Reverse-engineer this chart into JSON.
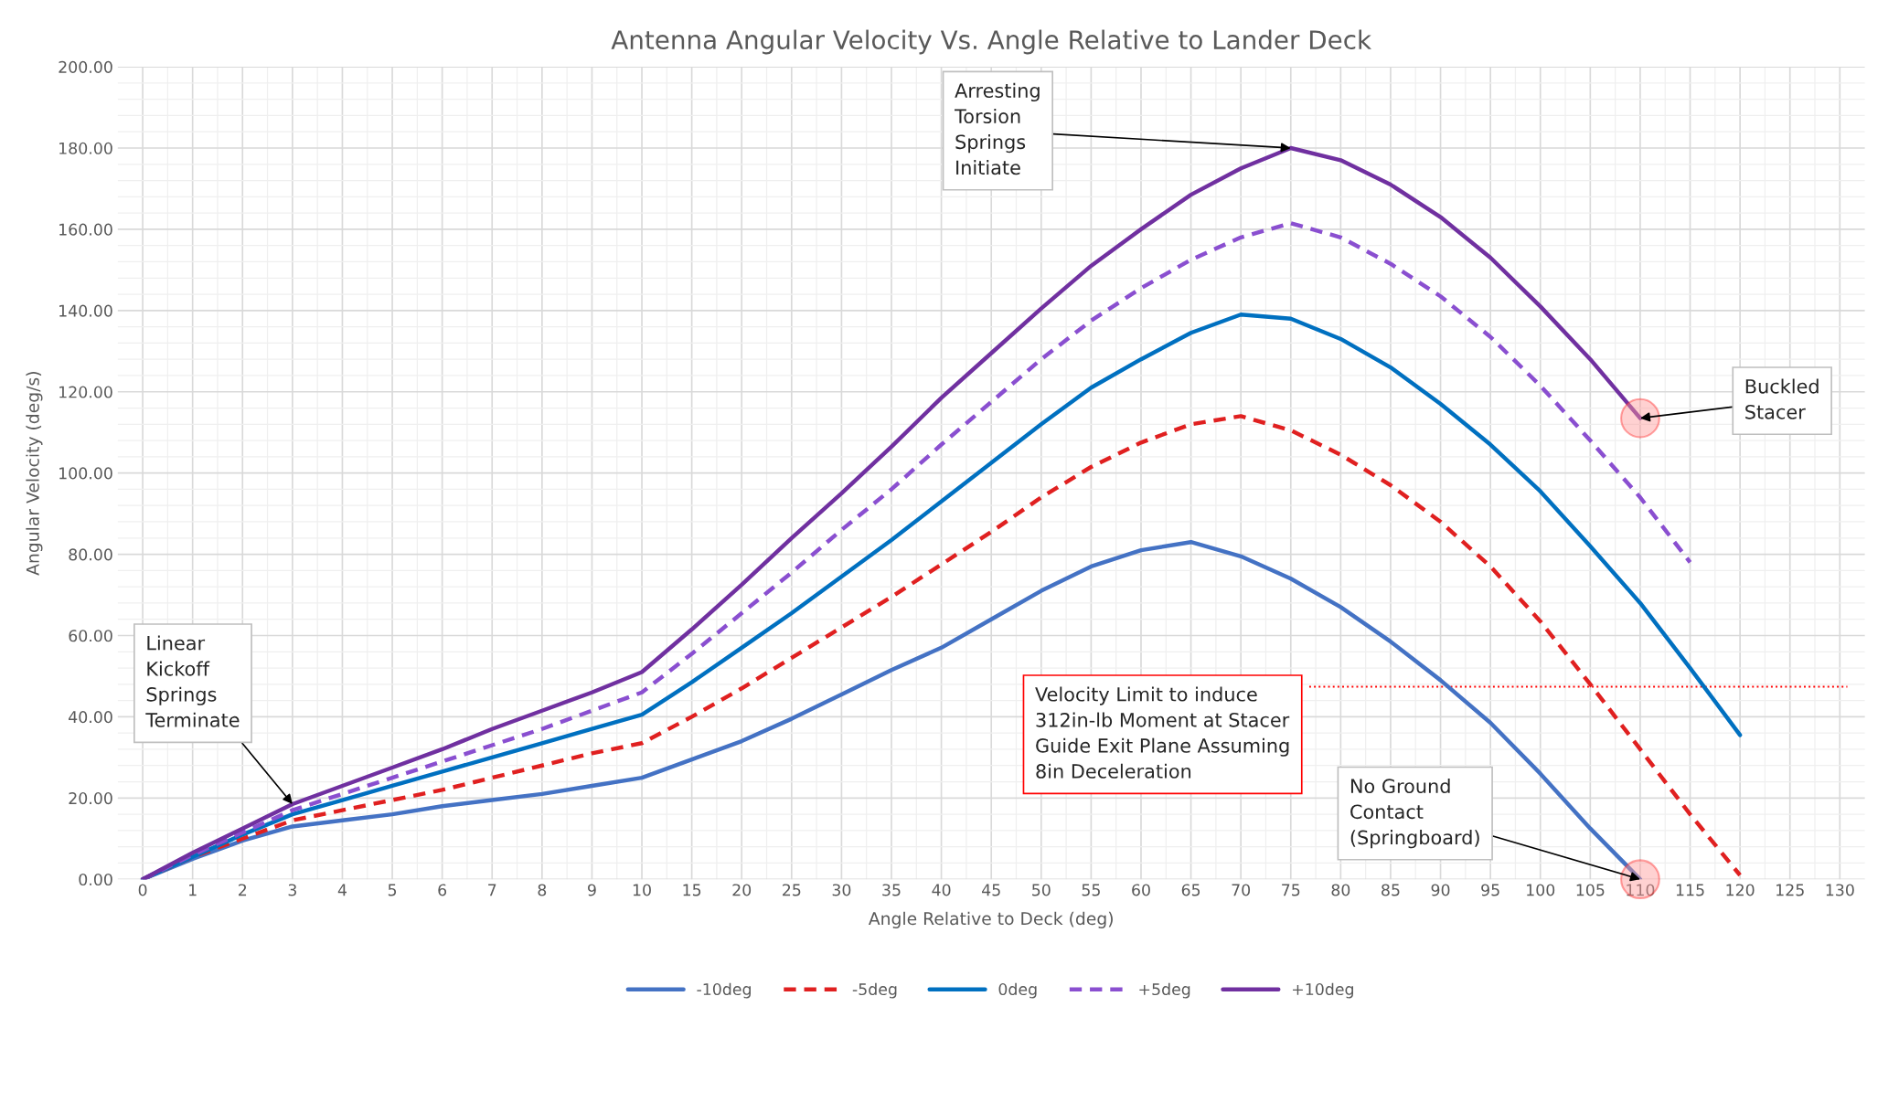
{
  "chart_data": {
    "type": "line",
    "title": "Antenna Angular Velocity Vs. Angle Relative to Lander Deck",
    "xlabel": "Angle Relative to Deck (deg)",
    "ylabel": "Angular Velocity (deg/s)",
    "categories": [
      "0",
      "1",
      "2",
      "3",
      "4",
      "5",
      "6",
      "7",
      "8",
      "9",
      "10",
      "15",
      "20",
      "25",
      "30",
      "35",
      "40",
      "45",
      "50",
      "55",
      "60",
      "65",
      "70",
      "75",
      "80",
      "85",
      "90",
      "95",
      "100",
      "105",
      "110",
      "115",
      "120",
      "125",
      "130"
    ],
    "ylim": [
      0,
      200
    ],
    "yticks": [
      {
        "value": 0,
        "label": "0.00"
      },
      {
        "value": 20,
        "label": "20.00"
      },
      {
        "value": 40,
        "label": "40.00"
      },
      {
        "value": 60,
        "label": "60.00"
      },
      {
        "value": 80,
        "label": "80.00"
      },
      {
        "value": 100,
        "label": "100.00"
      },
      {
        "value": 120,
        "label": "120.00"
      },
      {
        "value": 140,
        "label": "140.00"
      },
      {
        "value": 160,
        "label": "160.00"
      },
      {
        "value": 180,
        "label": "180.00"
      },
      {
        "value": 200,
        "label": "200.00"
      }
    ],
    "grid": true,
    "legend": "bottom",
    "series": [
      {
        "name": "-10deg",
        "color": "#4472c4",
        "line_style": "solid",
        "values": [
          0,
          5,
          9.5,
          13,
          14.5,
          16,
          18,
          19.5,
          21,
          23,
          25,
          29.5,
          34,
          39.5,
          45.5,
          51.5,
          57,
          64,
          71,
          77,
          81,
          83,
          79.5,
          74,
          67,
          58.5,
          49,
          38.5,
          26,
          12.5,
          0,
          null,
          null,
          null,
          null
        ]
      },
      {
        "name": "-5deg",
        "color": "#e02020",
        "line_style": "dashed",
        "values": [
          0,
          5.5,
          10,
          14.5,
          17,
          19.5,
          22,
          25,
          28,
          31,
          33.5,
          40,
          47,
          54.5,
          62,
          69.5,
          77.5,
          85.5,
          94,
          101.5,
          107.5,
          112,
          114,
          110.5,
          104.5,
          97,
          88,
          77,
          63.5,
          48,
          32,
          16,
          1,
          null,
          null
        ]
      },
      {
        "name": "0deg",
        "color": "#0070c0",
        "line_style": "solid",
        "values": [
          0,
          5.5,
          11,
          16,
          19.5,
          23,
          26.5,
          30,
          33.5,
          37,
          40.5,
          48.5,
          57,
          65.5,
          74.5,
          83.5,
          93,
          102.5,
          112,
          121,
          128,
          134.5,
          139,
          138,
          133,
          126,
          117,
          107,
          95.5,
          82,
          68,
          52,
          35.5,
          null,
          null
        ]
      },
      {
        "name": "+5deg",
        "color": "#8a4fd0",
        "line_style": "dashed",
        "values": [
          0,
          6,
          11.5,
          17,
          21,
          25,
          29,
          33,
          37,
          41.5,
          46,
          55.5,
          65.5,
          75.5,
          86,
          96,
          107,
          117.5,
          128,
          137.5,
          145.5,
          152.5,
          158,
          161.5,
          158,
          151.5,
          143.5,
          133.5,
          121.5,
          108,
          94,
          78,
          null,
          null,
          null
        ]
      },
      {
        "name": "+10deg",
        "color": "#7030a0",
        "line_style": "solid",
        "values": [
          0,
          6.5,
          12.5,
          18.5,
          23,
          27.5,
          32,
          37,
          41.5,
          46,
          51,
          61.5,
          72.5,
          84,
          95,
          106.5,
          118.5,
          129.5,
          140.5,
          151,
          160,
          168.5,
          175,
          180,
          177,
          171,
          163,
          153,
          141,
          128,
          113.5,
          null,
          null,
          null,
          null
        ]
      }
    ],
    "ref_lines": [
      {
        "axis": "y",
        "value": 47.4,
        "label": "Velocity Limit to induce\n312in-lb Moment at Stacer\nGuide Exit Plane Assuming\n8in Deceleration",
        "color": "#ff0000",
        "line_style": "dotted"
      }
    ],
    "annotations": [
      {
        "text": "Linear\nKickoff\nSprings\nTerminate",
        "x": "3",
        "y": 18.5
      },
      {
        "text": "Arresting\nTorsion\nSprings\nInitiate",
        "x": "75",
        "y": 180
      },
      {
        "text": "Buckled\nStacer",
        "x": "110",
        "y": 113.5
      },
      {
        "text": "No Ground\nContact\n(Springboard)",
        "x": "110",
        "y": 0
      }
    ]
  }
}
